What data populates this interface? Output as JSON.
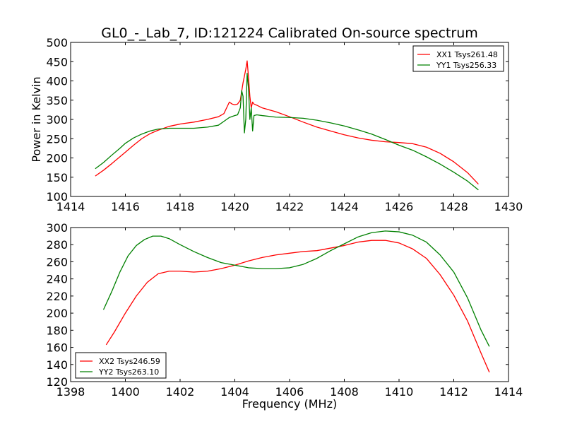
{
  "chart_data": [
    {
      "type": "line",
      "title": "GL0_-_Lab_7, ID:121224 Calibrated On-source spectrum",
      "xlabel": "",
      "ylabel": "Power in Kelvin",
      "xlim": [
        1414,
        1430
      ],
      "ylim": [
        100,
        500
      ],
      "xticks": [
        1414,
        1416,
        1418,
        1420,
        1422,
        1424,
        1426,
        1428,
        1430
      ],
      "yticks": [
        100,
        150,
        200,
        250,
        300,
        350,
        400,
        450,
        500
      ],
      "legend_position": "top-right",
      "grid": false,
      "series": [
        {
          "name": "XX1 Tsys261.48",
          "color": "#ff0000",
          "points": [
            [
              1414.9,
              153
            ],
            [
              1415.2,
              168
            ],
            [
              1415.5,
              185
            ],
            [
              1415.8,
              203
            ],
            [
              1416.0,
              215
            ],
            [
              1416.3,
              233
            ],
            [
              1416.6,
              250
            ],
            [
              1416.9,
              263
            ],
            [
              1417.2,
              272
            ],
            [
              1417.6,
              282
            ],
            [
              1418.0,
              288
            ],
            [
              1418.5,
              293
            ],
            [
              1419.0,
              300
            ],
            [
              1419.4,
              307
            ],
            [
              1419.6,
              315
            ],
            [
              1419.7,
              330
            ],
            [
              1419.8,
              345
            ],
            [
              1419.9,
              340
            ],
            [
              1420.0,
              338
            ],
            [
              1420.1,
              340
            ],
            [
              1420.2,
              350
            ],
            [
              1420.3,
              395
            ],
            [
              1420.4,
              430
            ],
            [
              1420.45,
              452
            ],
            [
              1420.5,
              410
            ],
            [
              1420.55,
              360
            ],
            [
              1420.6,
              330
            ],
            [
              1420.65,
              345
            ],
            [
              1420.7,
              340
            ],
            [
              1420.8,
              337
            ],
            [
              1421.0,
              330
            ],
            [
              1421.5,
              320
            ],
            [
              1422.0,
              307
            ],
            [
              1422.5,
              293
            ],
            [
              1423.0,
              280
            ],
            [
              1423.5,
              270
            ],
            [
              1424.0,
              260
            ],
            [
              1424.5,
              252
            ],
            [
              1425.0,
              246
            ],
            [
              1425.5,
              242
            ],
            [
              1426.0,
              240
            ],
            [
              1426.5,
              237
            ],
            [
              1427.0,
              228
            ],
            [
              1427.5,
              212
            ],
            [
              1428.0,
              190
            ],
            [
              1428.5,
              162
            ],
            [
              1428.9,
              132
            ]
          ]
        },
        {
          "name": "YY1 Tsys256.33",
          "color": "#008000",
          "points": [
            [
              1414.9,
              172
            ],
            [
              1415.2,
              188
            ],
            [
              1415.5,
              207
            ],
            [
              1415.8,
              225
            ],
            [
              1416.0,
              238
            ],
            [
              1416.3,
              252
            ],
            [
              1416.6,
              262
            ],
            [
              1416.9,
              270
            ],
            [
              1417.2,
              275
            ],
            [
              1417.6,
              277
            ],
            [
              1418.0,
              277
            ],
            [
              1418.5,
              277
            ],
            [
              1419.0,
              280
            ],
            [
              1419.4,
              285
            ],
            [
              1419.6,
              295
            ],
            [
              1419.8,
              305
            ],
            [
              1420.0,
              310
            ],
            [
              1420.1,
              312
            ],
            [
              1420.2,
              330
            ],
            [
              1420.25,
              375
            ],
            [
              1420.3,
              360
            ],
            [
              1420.35,
              265
            ],
            [
              1420.4,
              300
            ],
            [
              1420.45,
              420
            ],
            [
              1420.5,
              380
            ],
            [
              1420.55,
              300
            ],
            [
              1420.6,
              330
            ],
            [
              1420.65,
              270
            ],
            [
              1420.7,
              310
            ],
            [
              1420.8,
              312
            ],
            [
              1421.0,
              310
            ],
            [
              1421.5,
              306
            ],
            [
              1422.0,
              305
            ],
            [
              1422.5,
              303
            ],
            [
              1423.0,
              298
            ],
            [
              1423.5,
              291
            ],
            [
              1424.0,
              283
            ],
            [
              1424.5,
              273
            ],
            [
              1425.0,
              262
            ],
            [
              1425.5,
              248
            ],
            [
              1426.0,
              233
            ],
            [
              1426.5,
              220
            ],
            [
              1427.0,
              203
            ],
            [
              1427.5,
              184
            ],
            [
              1428.0,
              163
            ],
            [
              1428.5,
              140
            ],
            [
              1428.9,
              117
            ]
          ]
        }
      ]
    },
    {
      "type": "line",
      "title": "",
      "xlabel": "Frequency (MHz)",
      "ylabel": "",
      "xlim": [
        1398,
        1414
      ],
      "ylim": [
        120,
        300
      ],
      "xticks": [
        1398,
        1400,
        1402,
        1404,
        1406,
        1408,
        1410,
        1412,
        1414
      ],
      "yticks": [
        120,
        140,
        160,
        180,
        200,
        220,
        240,
        260,
        280,
        300
      ],
      "legend_position": "bottom-left",
      "grid": false,
      "series": [
        {
          "name": "XX2 Tsys246.59",
          "color": "#ff0000",
          "points": [
            [
              1399.3,
              163
            ],
            [
              1399.6,
              178
            ],
            [
              1400.0,
              200
            ],
            [
              1400.4,
              220
            ],
            [
              1400.8,
              236
            ],
            [
              1401.2,
              246
            ],
            [
              1401.6,
              249
            ],
            [
              1402.0,
              249
            ],
            [
              1402.5,
              248
            ],
            [
              1403.0,
              249
            ],
            [
              1403.5,
              252
            ],
            [
              1404.0,
              256
            ],
            [
              1404.5,
              261
            ],
            [
              1405.0,
              265
            ],
            [
              1405.5,
              268
            ],
            [
              1406.0,
              270
            ],
            [
              1406.5,
              272
            ],
            [
              1407.0,
              273
            ],
            [
              1407.5,
              276
            ],
            [
              1408.0,
              279
            ],
            [
              1408.5,
              283
            ],
            [
              1409.0,
              285
            ],
            [
              1409.5,
              285
            ],
            [
              1410.0,
              282
            ],
            [
              1410.5,
              275
            ],
            [
              1411.0,
              264
            ],
            [
              1411.5,
              245
            ],
            [
              1412.0,
              221
            ],
            [
              1412.5,
              191
            ],
            [
              1413.0,
              153
            ],
            [
              1413.3,
              131
            ]
          ]
        },
        {
          "name": "YY2 Tsys263.10",
          "color": "#008000",
          "points": [
            [
              1399.2,
              204
            ],
            [
              1399.5,
              225
            ],
            [
              1399.8,
              248
            ],
            [
              1400.1,
              267
            ],
            [
              1400.4,
              279
            ],
            [
              1400.7,
              286
            ],
            [
              1401.0,
              290
            ],
            [
              1401.3,
              290
            ],
            [
              1401.6,
              287
            ],
            [
              1402.0,
              280
            ],
            [
              1402.5,
              272
            ],
            [
              1403.0,
              265
            ],
            [
              1403.5,
              259
            ],
            [
              1404.0,
              256
            ],
            [
              1404.5,
              253
            ],
            [
              1405.0,
              252
            ],
            [
              1405.5,
              252
            ],
            [
              1406.0,
              253
            ],
            [
              1406.5,
              257
            ],
            [
              1407.0,
              264
            ],
            [
              1407.5,
              273
            ],
            [
              1408.0,
              281
            ],
            [
              1408.5,
              289
            ],
            [
              1409.0,
              294
            ],
            [
              1409.5,
              296
            ],
            [
              1410.0,
              295
            ],
            [
              1410.5,
              291
            ],
            [
              1411.0,
              283
            ],
            [
              1411.5,
              268
            ],
            [
              1412.0,
              248
            ],
            [
              1412.5,
              218
            ],
            [
              1413.0,
              180
            ],
            [
              1413.3,
              161
            ]
          ]
        }
      ]
    }
  ]
}
